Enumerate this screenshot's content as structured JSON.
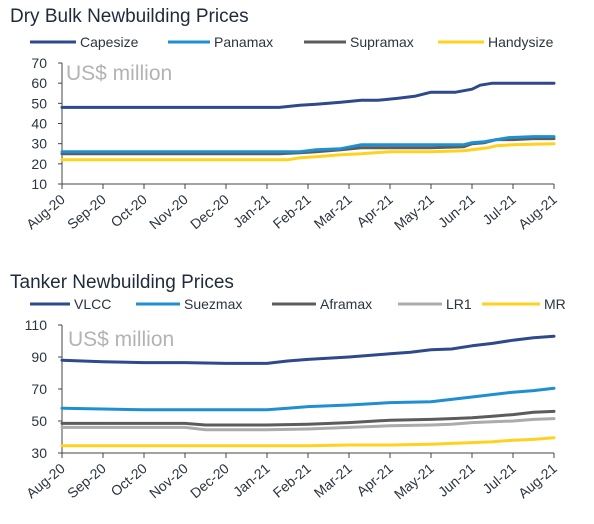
{
  "colors": {
    "Capesize": "#2e4a8c",
    "Panamax": "#1f8fd1",
    "Supramax": "#5c5c5c",
    "Handysize": "#ffd21f",
    "VLCC": "#2e4a8c",
    "Suezmax": "#1f8fd1",
    "Aframax": "#5c5c5c",
    "LR1": "#ababab",
    "MR": "#ffd21f",
    "axis": "#444444"
  },
  "chart_data": [
    {
      "type": "line",
      "title": "Dry Bulk Newbuilding Prices",
      "unit_label": "US$ million",
      "x_ticks": [
        "Aug-20",
        "Sep-20",
        "Oct-20",
        "Nov-20",
        "Dec-20",
        "Jan-21",
        "Feb-21",
        "Mar-21",
        "Apr-21",
        "May-21",
        "Jun-21",
        "Jul-21",
        "Aug-21"
      ],
      "y_ticks": [
        "70",
        "60",
        "50",
        "40",
        "30",
        "20",
        "10"
      ],
      "ylim": [
        10,
        70
      ],
      "grid": false,
      "legend_position": "top",
      "series": [
        {
          "name": "Capesize",
          "x": [
            0,
            2,
            4,
            5,
            5.3,
            5.8,
            6.2,
            6.8,
            7.3,
            7.7,
            8.2,
            8.6,
            9.0,
            9.6,
            10.0,
            10.2,
            10.5,
            11,
            12
          ],
          "values": [
            48,
            48,
            48,
            48,
            48,
            49,
            49.5,
            50.5,
            51.5,
            51.5,
            52.5,
            53.5,
            55.5,
            55.5,
            57,
            59,
            60,
            60,
            60
          ]
        },
        {
          "name": "Panamax",
          "x": [
            0,
            2,
            4,
            5,
            5.3,
            5.8,
            6.2,
            6.8,
            7.3,
            8,
            9,
            9.8,
            10.0,
            10.3,
            10.6,
            10.9,
            11.5,
            12
          ],
          "values": [
            26,
            26,
            26,
            26,
            26,
            26,
            27,
            27.5,
            29.5,
            29.5,
            29.5,
            29.5,
            30.5,
            31,
            32,
            33,
            33.5,
            33.5
          ]
        },
        {
          "name": "Supramax",
          "x": [
            0,
            2,
            4,
            5,
            5.3,
            5.8,
            6.2,
            6.8,
            7.3,
            8,
            9,
            9.8,
            10.0,
            10.3,
            10.6,
            11,
            11.5,
            12
          ],
          "values": [
            25,
            25,
            25,
            25,
            25,
            25.5,
            26,
            27,
            28,
            28,
            28,
            28.5,
            30,
            30.5,
            32,
            32,
            32.5,
            32.5
          ]
        },
        {
          "name": "Handysize",
          "x": [
            0,
            2,
            4,
            5,
            5.5,
            5.8,
            6.2,
            6.8,
            7.3,
            8,
            9,
            9.8,
            10.0,
            10.4,
            10.6,
            11,
            12
          ],
          "values": [
            22,
            22,
            22,
            22,
            22,
            23,
            23.5,
            24.5,
            25,
            26,
            26,
            26.5,
            27,
            28,
            29,
            29.5,
            30
          ]
        }
      ]
    },
    {
      "type": "line",
      "title": "Tanker Newbuilding Prices",
      "unit_label": "US$ million",
      "x_ticks": [
        "Aug-20",
        "Sep-20",
        "Oct-20",
        "Nov-20",
        "Dec-20",
        "Jan-21",
        "Feb-21",
        "Mar-21",
        "Apr-21",
        "May-21",
        "Jun-21",
        "Jul-21",
        "Aug-21"
      ],
      "y_ticks": [
        "110",
        "90",
        "70",
        "50",
        "30"
      ],
      "ylim": [
        30,
        110
      ],
      "grid": false,
      "legend_position": "top",
      "series": [
        {
          "name": "VLCC",
          "x": [
            0,
            0.5,
            1,
            2,
            3,
            4,
            5,
            5.5,
            6,
            7,
            7.5,
            8,
            8.5,
            9,
            9.5,
            10,
            10.5,
            11,
            11.5,
            12
          ],
          "values": [
            88,
            87.5,
            87,
            86.5,
            86.5,
            86,
            86,
            87.5,
            88.5,
            90,
            91,
            92,
            93,
            94.5,
            95,
            97,
            98.5,
            100.5,
            102,
            103
          ]
        },
        {
          "name": "Suezmax",
          "x": [
            0,
            1,
            2,
            3,
            4,
            5,
            5.5,
            6,
            7,
            8,
            9,
            9.5,
            10,
            11,
            11.5,
            12
          ],
          "values": [
            58,
            57.5,
            57,
            57,
            57,
            57,
            58,
            59,
            60,
            61.5,
            62,
            63.5,
            65,
            68,
            69,
            70.5
          ]
        },
        {
          "name": "Aframax",
          "x": [
            0,
            1,
            2,
            3,
            3.5,
            4,
            5,
            6,
            7,
            8,
            9,
            9.5,
            10,
            10.5,
            11,
            11.5,
            12
          ],
          "values": [
            48.5,
            48.5,
            48.5,
            48.5,
            47.5,
            47.5,
            47.5,
            48,
            49,
            50.5,
            51,
            51.5,
            52,
            53,
            54,
            55.5,
            56
          ]
        },
        {
          "name": "LR1",
          "x": [
            0,
            1,
            2,
            3,
            3.5,
            4,
            5,
            6,
            7,
            8,
            9,
            9.5,
            10,
            10.5,
            11,
            11.5,
            12
          ],
          "values": [
            46,
            46,
            46,
            46,
            44.5,
            44.5,
            44.5,
            45,
            46,
            47,
            47.5,
            48,
            49,
            49.5,
            50,
            51,
            51.5
          ]
        },
        {
          "name": "MR",
          "x": [
            0,
            1,
            2,
            3,
            4,
            5,
            6,
            7,
            8,
            9,
            9.5,
            10,
            10.5,
            11,
            11.5,
            12
          ],
          "values": [
            34.5,
            34.5,
            34.5,
            34.5,
            34.5,
            34.5,
            34.5,
            35,
            35,
            35.5,
            36,
            36.5,
            37,
            38,
            38.5,
            39.5
          ]
        }
      ]
    }
  ]
}
